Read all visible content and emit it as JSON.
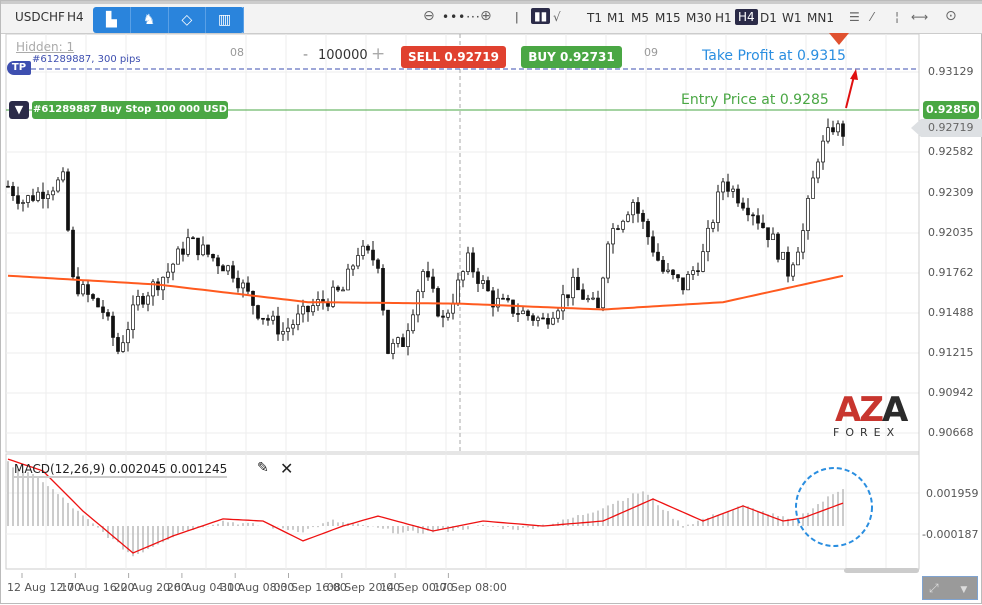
{
  "toolbar": {
    "symbol": "USDCHF",
    "timeframe": "H4",
    "timeframes": [
      "T1",
      "M1",
      "M5",
      "M15",
      "M30",
      "H1",
      "H4",
      "D1",
      "W1",
      "MN1"
    ],
    "active_timeframe": "H4"
  },
  "chart": {
    "hidden": "Hidden: 1",
    "tp_badge": "TP",
    "tp_order": "#61289887, 300 pips",
    "order_label": "#61289887 Buy Stop 100 000 USD",
    "volume": "100000",
    "minus": "-",
    "plus": "+",
    "sell": "SELL 0.92719",
    "buy": "BUY 0.92731",
    "day_labels": [
      "08",
      "09"
    ],
    "take_profit_note": "Take Profit at 0.9315",
    "entry_note": "Entry Price at 0.9285",
    "price_ticks": [
      "0.93129",
      "0.92582",
      "0.92309",
      "0.92035",
      "0.91762",
      "0.91488",
      "0.91215",
      "0.90942",
      "0.90668"
    ],
    "entry_price_tag": "0.92850",
    "current_price_tag": "0.92719",
    "price_path": [
      [
        0,
        0.9235
      ],
      [
        3,
        0.9225
      ],
      [
        11,
        0.9239
      ],
      [
        13,
        0.917
      ],
      [
        19,
        0.915
      ],
      [
        22,
        0.9123
      ],
      [
        26,
        0.9157
      ],
      [
        32,
        0.9177
      ],
      [
        36,
        0.9198
      ],
      [
        39,
        0.9191
      ],
      [
        45,
        0.9177
      ],
      [
        50,
        0.915
      ],
      [
        55,
        0.9136
      ],
      [
        61,
        0.9153
      ],
      [
        67,
        0.9164
      ],
      [
        70,
        0.9191
      ],
      [
        74,
        0.9184
      ],
      [
        76,
        0.9123
      ],
      [
        79,
        0.9129
      ],
      [
        83,
        0.9177
      ],
      [
        87,
        0.9143
      ],
      [
        92,
        0.9184
      ],
      [
        97,
        0.9157
      ],
      [
        107,
        0.9143
      ],
      [
        113,
        0.9167
      ],
      [
        118,
        0.915
      ],
      [
        120,
        0.9201
      ],
      [
        125,
        0.9225
      ],
      [
        131,
        0.9177
      ],
      [
        135,
        0.9167
      ],
      [
        139,
        0.9188
      ],
      [
        143,
        0.9239
      ],
      [
        149,
        0.9218
      ],
      [
        153,
        0.9198
      ],
      [
        156,
        0.9177
      ],
      [
        159,
        0.9204
      ],
      [
        162,
        0.9256
      ],
      [
        165,
        0.9276
      ],
      [
        167,
        0.9272
      ]
    ],
    "ma_path": [
      [
        0,
        0.9174
      ],
      [
        30,
        0.9168
      ],
      [
        60,
        0.9156
      ],
      [
        90,
        0.9155
      ],
      [
        119,
        0.9151
      ],
      [
        143,
        0.9156
      ],
      [
        167,
        0.9174
      ]
    ]
  },
  "macd": {
    "title": "MACD(12,26,9) 0.002045 0.001245",
    "ticks": [
      "0.001959",
      "-0.000187"
    ],
    "hist_path": [
      [
        0,
        0.0033
      ],
      [
        7,
        0.00235
      ],
      [
        15,
        0.0005
      ],
      [
        25,
        -0.00157
      ],
      [
        35,
        -0.00026
      ],
      [
        43,
        0.00026
      ],
      [
        51,
        0
      ],
      [
        59,
        -0.00026
      ],
      [
        65,
        0.00026
      ],
      [
        71,
        0
      ],
      [
        79,
        -0.00037
      ],
      [
        87,
        -0.00026
      ],
      [
        95,
        0
      ],
      [
        103,
        -0.00016
      ],
      [
        111,
        0.00026
      ],
      [
        117,
        0.00078
      ],
      [
        127,
        0.00183
      ],
      [
        135,
        0
      ],
      [
        147,
        0.00105
      ],
      [
        157,
        0.00026
      ],
      [
        167,
        0.002
      ]
    ],
    "signal_path": [
      [
        0,
        0.0035
      ],
      [
        7,
        0.00288
      ],
      [
        15,
        0.00078
      ],
      [
        25,
        -0.00141
      ],
      [
        33,
        -0.00052
      ],
      [
        43,
        0.00037
      ],
      [
        51,
        0.00026
      ],
      [
        59,
        -0.00078
      ],
      [
        67,
        0
      ],
      [
        74,
        0.00052
      ],
      [
        85,
        -0.00026
      ],
      [
        95,
        0.00026
      ],
      [
        107,
        0
      ],
      [
        119,
        0.00026
      ],
      [
        129,
        0.00141
      ],
      [
        139,
        0.00026
      ],
      [
        147,
        0.00105
      ],
      [
        155,
        0.00026
      ],
      [
        159,
        0.00042
      ],
      [
        167,
        0.0012
      ]
    ]
  },
  "time_labels": [
    "12 Aug 12:00",
    "17 Aug 16:00",
    "22 Aug 20:00",
    "26 Aug 04:00",
    "31 Aug 08:00",
    "03 Sep 16:00",
    "08 Sep 20:00",
    "14 Sep 00:00",
    "17 Sep 08:00"
  ],
  "logo": {
    "text": "AZA",
    "sub": "FOREX"
  },
  "colors": {
    "sell": "#e0412f",
    "buy": "#4aa744",
    "tp": "#3e4fb0",
    "ma": "#ff5a1f",
    "macd_signal": "#ee1111",
    "highlight": "#2a8ee0"
  }
}
